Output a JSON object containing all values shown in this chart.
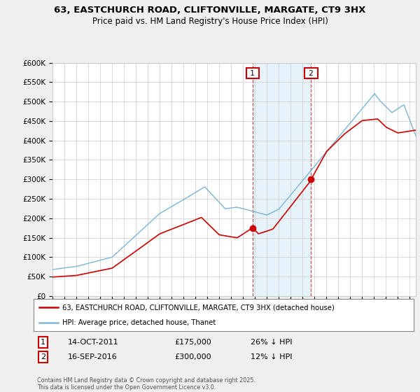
{
  "title": "63, EASTCHURCH ROAD, CLIFTONVILLE, MARGATE, CT9 3HX",
  "subtitle": "Price paid vs. HM Land Registry's House Price Index (HPI)",
  "hpi_color": "#7ab5d8",
  "price_color": "#cc0000",
  "background_color": "#f0f0f0",
  "plot_bg_color": "#ffffff",
  "shaded_color": "#ddeef8",
  "vline_color": "#cc4444",
  "grid_color": "#cccccc",
  "ylim": [
    0,
    600000
  ],
  "ytick_step": 50000,
  "transaction1": {
    "date": "14-OCT-2011",
    "price": 175000,
    "year": 2011.79,
    "label": "1",
    "hpi_diff": "26% ↓ HPI"
  },
  "transaction2": {
    "date": "16-SEP-2016",
    "price": 300000,
    "year": 2016.71,
    "label": "2",
    "hpi_diff": "12% ↓ HPI"
  },
  "legend_line1": "63, EASTCHURCH ROAD, CLIFTONVILLE, MARGATE, CT9 3HX (detached house)",
  "legend_line2": "HPI: Average price, detached house, Thanet",
  "footnote": "Contains HM Land Registry data © Crown copyright and database right 2025.\nThis data is licensed under the Open Government Licence v3.0.",
  "xmin": 1995,
  "xmax": 2025.5
}
